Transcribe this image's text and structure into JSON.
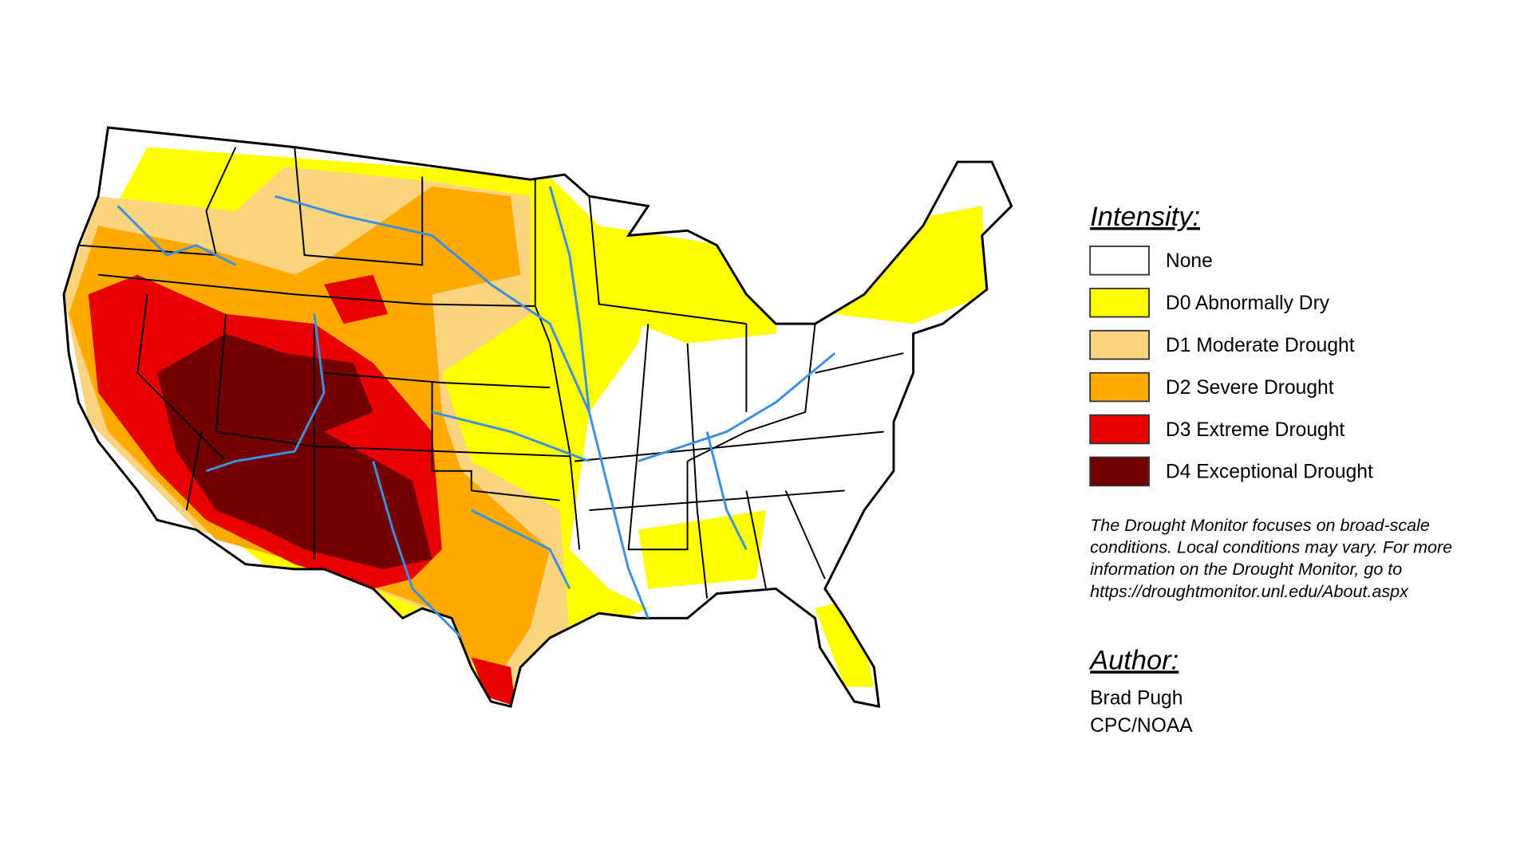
{
  "legend": {
    "title": "Intensity:",
    "items": [
      {
        "label": "None",
        "color": "#ffffff"
      },
      {
        "label": "D0 Abnormally Dry",
        "color": "#ffff00"
      },
      {
        "label": "D1 Moderate Drought",
        "color": "#fcd37f"
      },
      {
        "label": "D2 Severe Drought",
        "color": "#ffaa00"
      },
      {
        "label": "D3 Extreme Drought",
        "color": "#e60000"
      },
      {
        "label": "D4 Exceptional Drought",
        "color": "#730000"
      }
    ]
  },
  "note": [
    "The Drought Monitor focuses on broad-scale",
    "conditions. Local conditions may vary. For more",
    "information on the Drought Monitor, go to",
    "https://droughtmonitor.unl.edu/About.aspx"
  ],
  "author": {
    "title": "Author:",
    "lines": [
      "Brad Pugh",
      "CPC/NOAA"
    ]
  }
}
